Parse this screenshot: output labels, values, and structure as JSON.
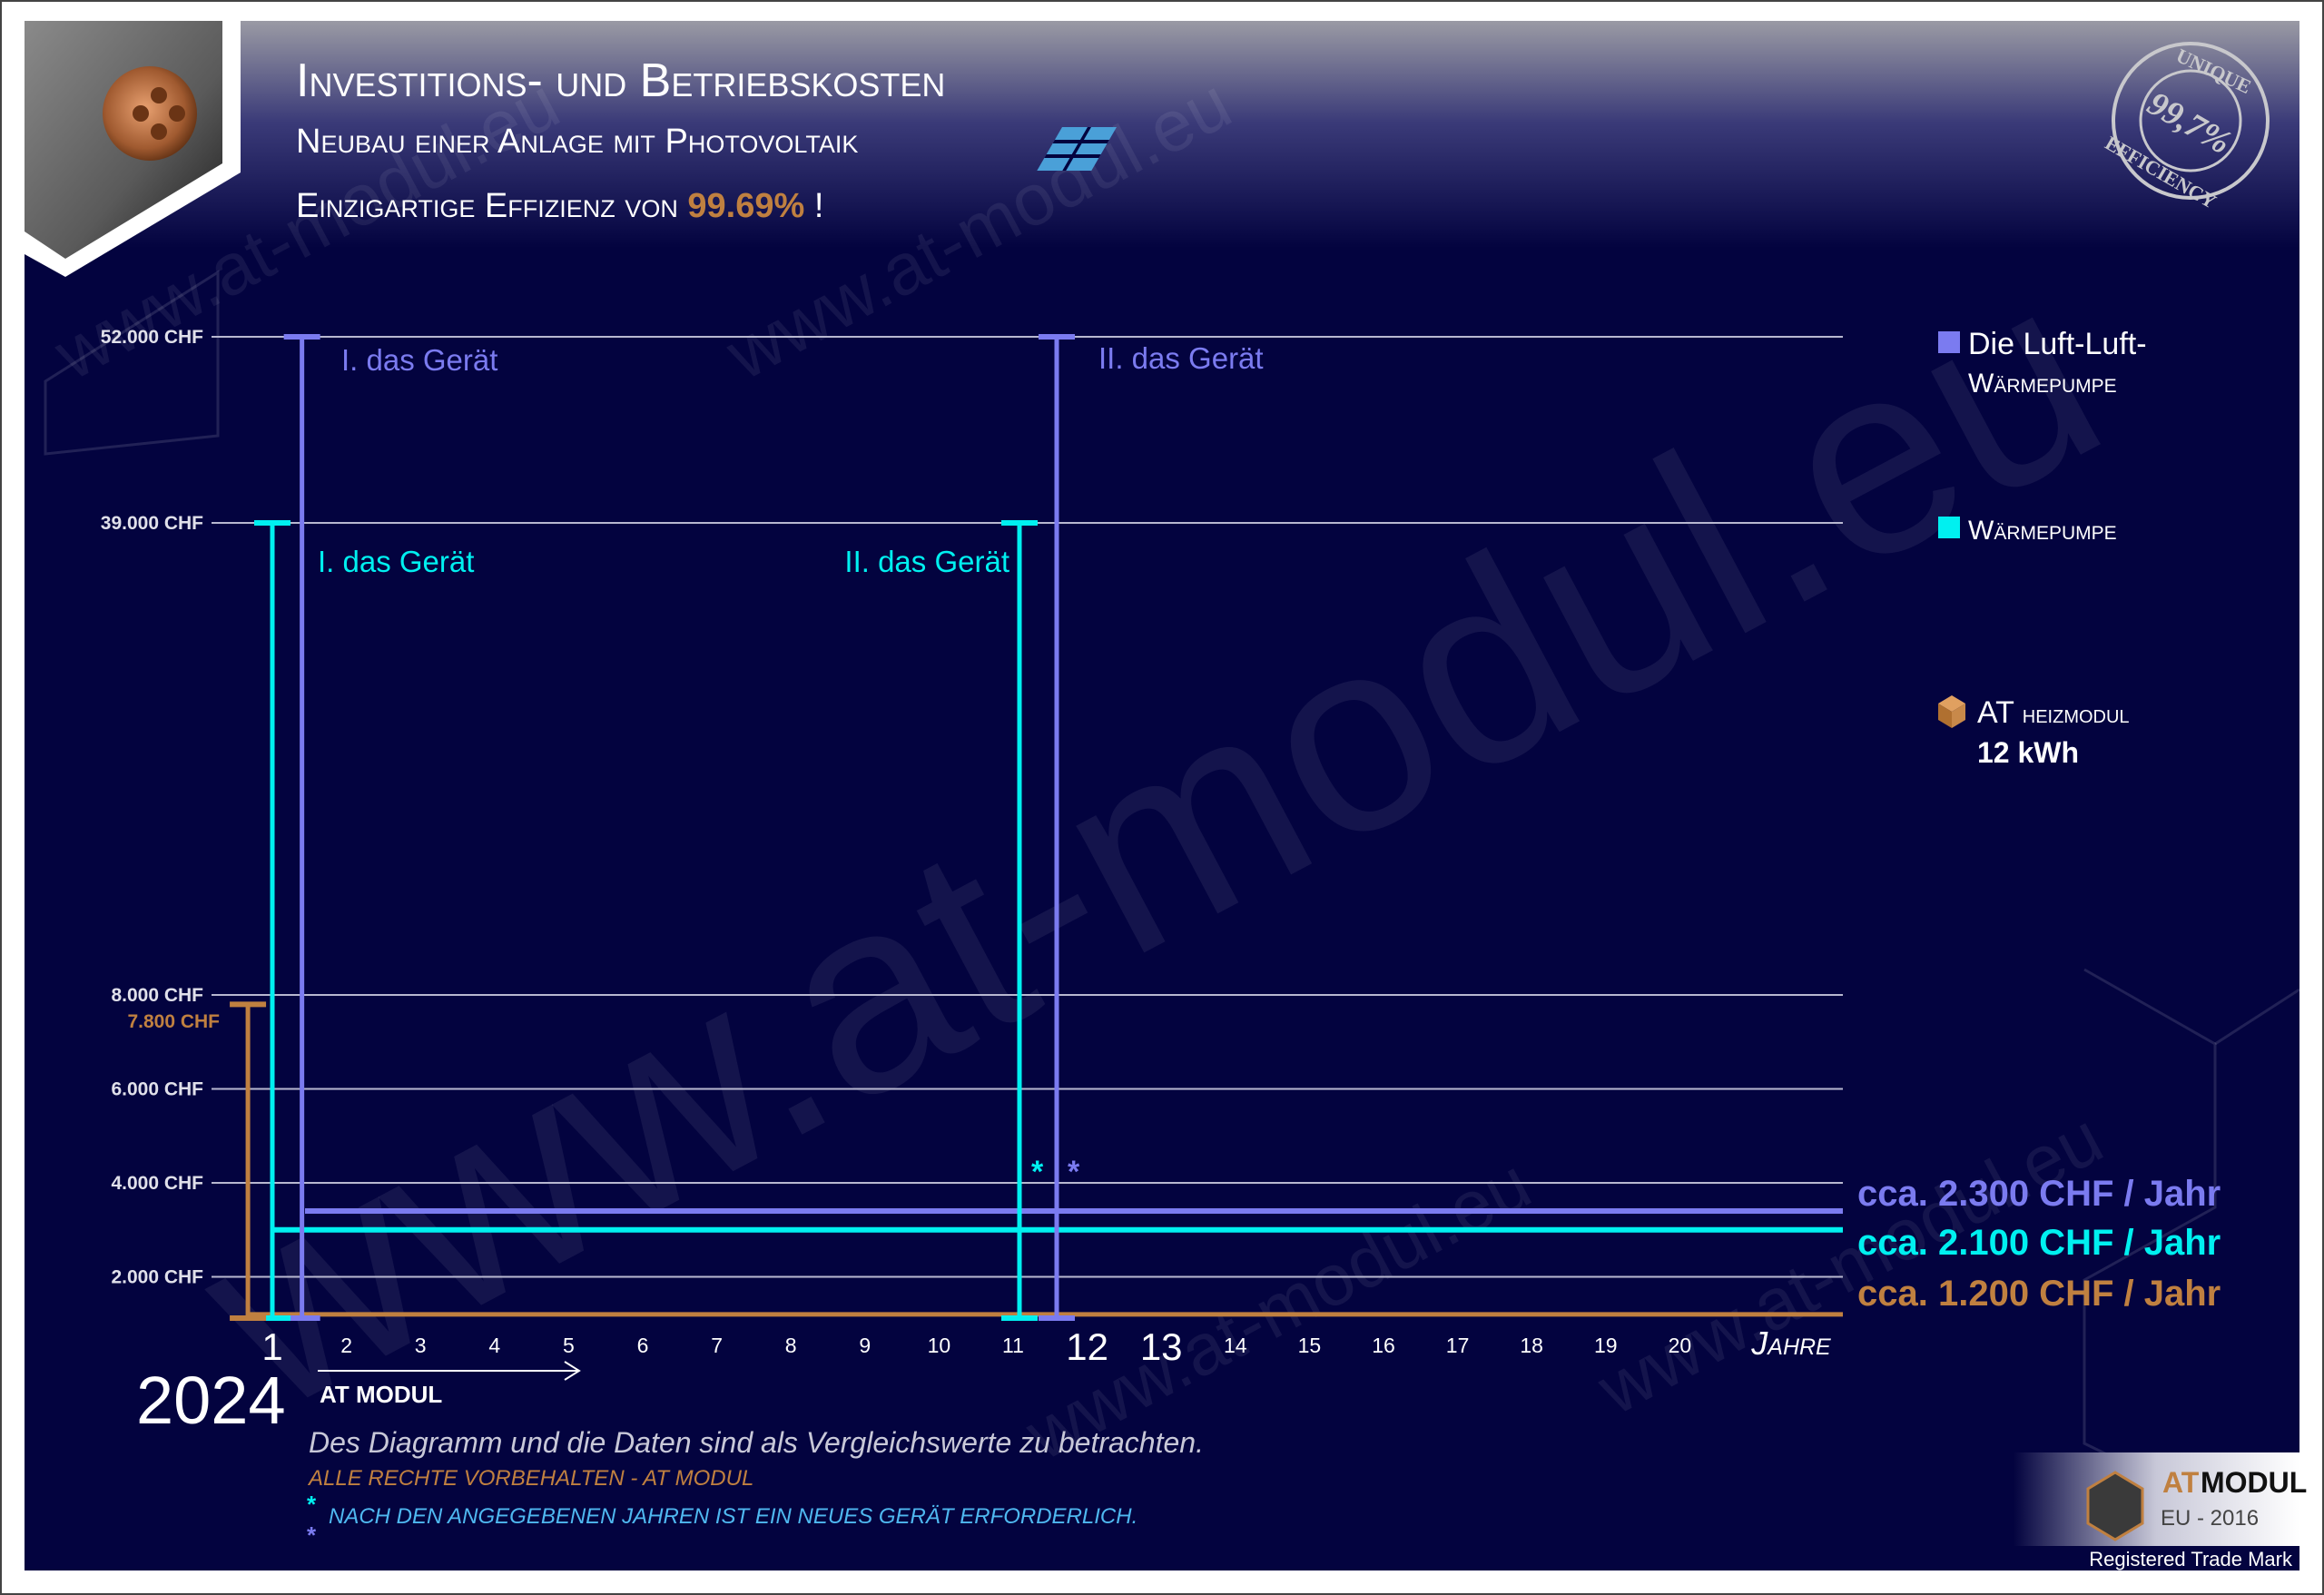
{
  "header": {
    "title": "Investitions- und Betriebskosten",
    "subtitle": "Neubau einer Anlage mit Photovoltaik",
    "efficiency_prefix": "Einzigartige Effizienz von",
    "efficiency_value": "99.69%",
    "efficiency_suffix": "!",
    "stamp_top": "UNIQUE",
    "stamp_center": "99,7%",
    "stamp_bottom": "EFFICIENCY",
    "solar_icon": "solar-panel-icon"
  },
  "colors": {
    "background": "#03033f",
    "luft_luft": "#7b7bf0",
    "waermepumpe": "#00f0f0",
    "at_modul": "#c08040",
    "grid": "#b8b8d0"
  },
  "chart_data": {
    "type": "bar",
    "y_ticks": [
      "52.000 CHF",
      "39.000 CHF",
      "8.000 CHF",
      "6.000 CHF",
      "4.000 CHF",
      "2.000 CHF"
    ],
    "y_tick_values": [
      52000,
      39000,
      8000,
      6000,
      4000,
      2000
    ],
    "y_scale": "broken (non-linear between 8.000 and 39.000)",
    "x_ticks": [
      "1",
      "2",
      "3",
      "4",
      "5",
      "6",
      "7",
      "8",
      "9",
      "10",
      "11",
      "12",
      "13",
      "14",
      "15",
      "16",
      "17",
      "18",
      "19",
      "20"
    ],
    "xlabel": "Jahre",
    "start_year": "2024",
    "arrow_label": "AT MODUL",
    "grid": true,
    "legend_placement": "right",
    "series": [
      {
        "name": "Die Luft-Luft-Wärmepumpe",
        "color": "#7b7bf0",
        "investments": [
          {
            "year": 1,
            "value": 52000,
            "label": "I. das Gerät"
          },
          {
            "year": 12,
            "value": 52000,
            "label": "II. das Gerät"
          }
        ],
        "operating_level": 3400,
        "annual_label": "cca. 2.300 CHF / Jahr",
        "annual_cost": 2300
      },
      {
        "name": "Wärmepumpe",
        "color": "#00f0f0",
        "investments": [
          {
            "year": 1,
            "value": 39000,
            "label": "I. das Gerät"
          },
          {
            "year": 11,
            "value": 39000,
            "label": "II. das Gerät"
          }
        ],
        "operating_level": 3000,
        "annual_label": "cca. 2.100 CHF / Jahr",
        "annual_cost": 2100
      },
      {
        "name": "AT heizmodul 12 kWh",
        "color": "#c08040",
        "investments": [
          {
            "year": 1,
            "value": 7800,
            "label": "7.800 CHF"
          }
        ],
        "operating_level": 1200,
        "annual_label": "cca. 1.200 CHF / Jahr",
        "annual_cost": 1200
      }
    ],
    "replacement_marker": "*"
  },
  "legend": {
    "luft_line1": "Die Luft-Luft-",
    "luft_line2": "Wärmepumpe",
    "wp": "Wärmepumpe",
    "at_line1_a": "AT",
    "at_line1_b": "heizmodul",
    "at_line2": "12 kWh"
  },
  "footer": {
    "disclaimer": "Des Diagramm und die Daten sind als Vergleichswerte zu betrachten.",
    "rights": "ALLE RECHTE VORBEHALTEN - AT MODUL",
    "footnote_marker": "*",
    "footnote": "NACH DEN ANGEGEBENEN JAHREN IST EIN NEUES GERÄT ERFORDERLICH.",
    "logo_at": "AT",
    "logo_modul": "MODUL",
    "logo_sub": "EU - 2016",
    "trademark": "Registered Trade Mark"
  },
  "watermark": "www.at-modul.eu"
}
